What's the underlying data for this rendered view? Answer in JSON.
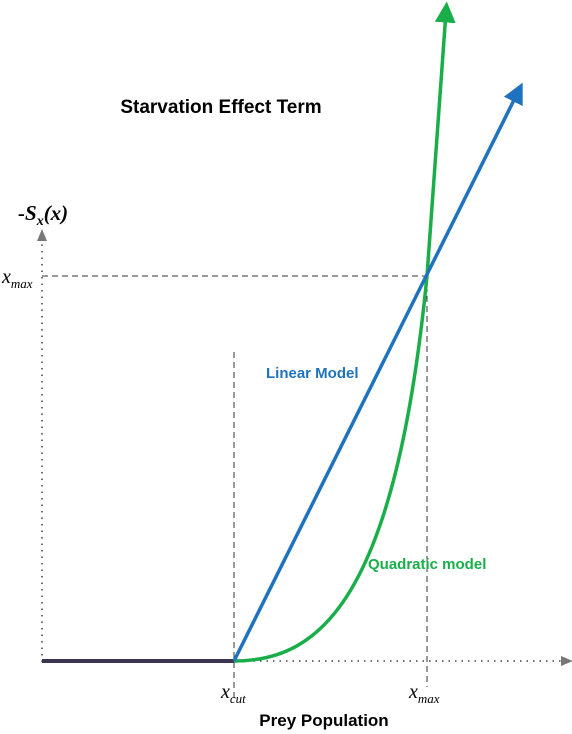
{
  "title": "Starvation Effect Term",
  "y_axis_label": {
    "prefix": "-S",
    "subscript": "x",
    "suffix": "(x)"
  },
  "x_axis_label": "Prey Population",
  "x_ticks": {
    "cut": {
      "base": "x",
      "subscript": "cut"
    },
    "max": {
      "base": "x",
      "subscript": "max"
    }
  },
  "y_tick": {
    "base": "x",
    "subscript": "max"
  },
  "curves": {
    "linear": {
      "label": "Linear Model",
      "color": "#1f73be"
    },
    "quadratic": {
      "label": "Quadratic model",
      "color": "#1aae4a"
    },
    "baseline": {
      "color": "#3b3550"
    }
  },
  "guide_line_color": "#333333"
}
